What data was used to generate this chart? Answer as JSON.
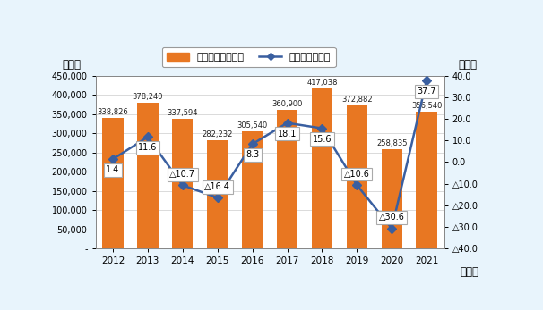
{
  "years": [
    2012,
    2013,
    2014,
    2015,
    2016,
    2017,
    2018,
    2019,
    2020,
    2021
  ],
  "sales": [
    338826,
    378240,
    337594,
    282232,
    305540,
    360900,
    417038,
    372882,
    258835,
    356540
  ],
  "yoy": [
    1.4,
    11.6,
    -10.7,
    -16.4,
    8.3,
    18.1,
    15.6,
    -10.6,
    -30.6,
    37.7
  ],
  "bar_color": "#E87722",
  "line_color": "#3A5FA0",
  "background_color": "#E8F4FC",
  "plot_background": "#FFFFFF",
  "left_ylabel": "（台）",
  "right_ylabel": "（％）",
  "xlabel": "（年）",
  "ylim_left": [
    0,
    450000
  ],
  "ylim_right": [
    -40,
    40
  ],
  "yticks_left": [
    0,
    50000,
    100000,
    150000,
    200000,
    250000,
    300000,
    350000,
    400000,
    450000
  ],
  "ytick_labels_left": [
    "-",
    "50,000",
    "100,000",
    "150,000",
    "200,000",
    "250,000",
    "300,000",
    "350,000",
    "400,000",
    "450,000"
  ],
  "yticks_right": [
    40,
    30,
    20,
    10,
    0,
    -10,
    -20,
    -30,
    -40
  ],
  "legend_bar_label": "販売台数（左軸）",
  "legend_line_label": "前年比（右軸）",
  "marker": "D",
  "marker_size": 5,
  "yoy_annotations": {
    "2012": {
      "text": "1.4",
      "neg": false
    },
    "2013": {
      "text": "11.6",
      "neg": false
    },
    "2014": {
      "text": "△10.7",
      "neg": true
    },
    "2015": {
      "text": "△16.4",
      "neg": true
    },
    "2016": {
      "text": "8.3",
      "neg": false
    },
    "2017": {
      "text": "18.1",
      "neg": false
    },
    "2018": {
      "text": "15.6",
      "neg": false
    },
    "2019": {
      "text": "△10.6",
      "neg": true
    },
    "2020": {
      "text": "△30.6",
      "neg": true
    },
    "2021": {
      "text": "37.7",
      "neg": false
    }
  }
}
